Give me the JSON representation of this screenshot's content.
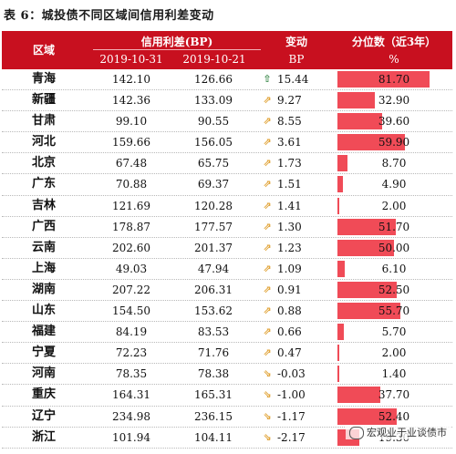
{
  "caption": "表 6：城投债不同区域间信用利差变动",
  "header": {
    "region": "区域",
    "spread": "信用利差(BP)",
    "date1": "2019-10-31",
    "date2": "2019-10-21",
    "change": "变动",
    "change_unit": "BP",
    "percentile": "分位数（近3年）",
    "percentile_unit": "%"
  },
  "rows": [
    {
      "region": "青海",
      "v1": "142.10",
      "v2": "126.66",
      "arrow": "up",
      "chg": "15.44",
      "pct": "81.70"
    },
    {
      "region": "新疆",
      "v1": "142.36",
      "v2": "133.09",
      "arrow": "rise",
      "chg": "9.27",
      "pct": "32.90"
    },
    {
      "region": "甘肃",
      "v1": "99.10",
      "v2": "90.55",
      "arrow": "rise",
      "chg": "8.55",
      "pct": "39.60"
    },
    {
      "region": "河北",
      "v1": "159.66",
      "v2": "156.05",
      "arrow": "rise",
      "chg": "3.61",
      "pct": "59.90"
    },
    {
      "region": "北京",
      "v1": "67.48",
      "v2": "65.75",
      "arrow": "rise",
      "chg": "1.73",
      "pct": "8.70"
    },
    {
      "region": "广东",
      "v1": "70.88",
      "v2": "69.37",
      "arrow": "rise",
      "chg": "1.51",
      "pct": "4.90"
    },
    {
      "region": "吉林",
      "v1": "121.69",
      "v2": "120.28",
      "arrow": "rise",
      "chg": "1.41",
      "pct": "2.00"
    },
    {
      "region": "广西",
      "v1": "178.87",
      "v2": "177.57",
      "arrow": "rise",
      "chg": "1.30",
      "pct": "51.70"
    },
    {
      "region": "云南",
      "v1": "202.60",
      "v2": "201.37",
      "arrow": "rise",
      "chg": "1.23",
      "pct": "50.00"
    },
    {
      "region": "上海",
      "v1": "49.03",
      "v2": "47.94",
      "arrow": "rise",
      "chg": "1.09",
      "pct": "6.10"
    },
    {
      "region": "湖南",
      "v1": "207.22",
      "v2": "206.31",
      "arrow": "rise",
      "chg": "0.91",
      "pct": "52.50"
    },
    {
      "region": "山东",
      "v1": "154.50",
      "v2": "153.62",
      "arrow": "rise",
      "chg": "0.88",
      "pct": "55.70"
    },
    {
      "region": "福建",
      "v1": "84.19",
      "v2": "83.53",
      "arrow": "rise",
      "chg": "0.66",
      "pct": "5.70"
    },
    {
      "region": "宁夏",
      "v1": "72.23",
      "v2": "71.76",
      "arrow": "rise",
      "chg": "0.47",
      "pct": "2.00"
    },
    {
      "region": "河南",
      "v1": "78.35",
      "v2": "78.38",
      "arrow": "fall",
      "chg": "-0.03",
      "pct": "1.40"
    },
    {
      "region": "重庆",
      "v1": "164.31",
      "v2": "165.31",
      "arrow": "fall",
      "chg": "-1.00",
      "pct": "37.70"
    },
    {
      "region": "辽宁",
      "v1": "234.98",
      "v2": "236.15",
      "arrow": "fall",
      "chg": "-1.17",
      "pct": "52.40"
    },
    {
      "region": "浙江",
      "v1": "101.94",
      "v2": "104.11",
      "arrow": "fall",
      "chg": "-2.17",
      "pct": "19.30"
    }
  ],
  "watermark": "宏观业于业谈债市",
  "colors": {
    "header_bg": "#c8101f",
    "bar": "#f04b57",
    "up_icon": "#3d8a4d",
    "change_icon": "#e0a030"
  }
}
